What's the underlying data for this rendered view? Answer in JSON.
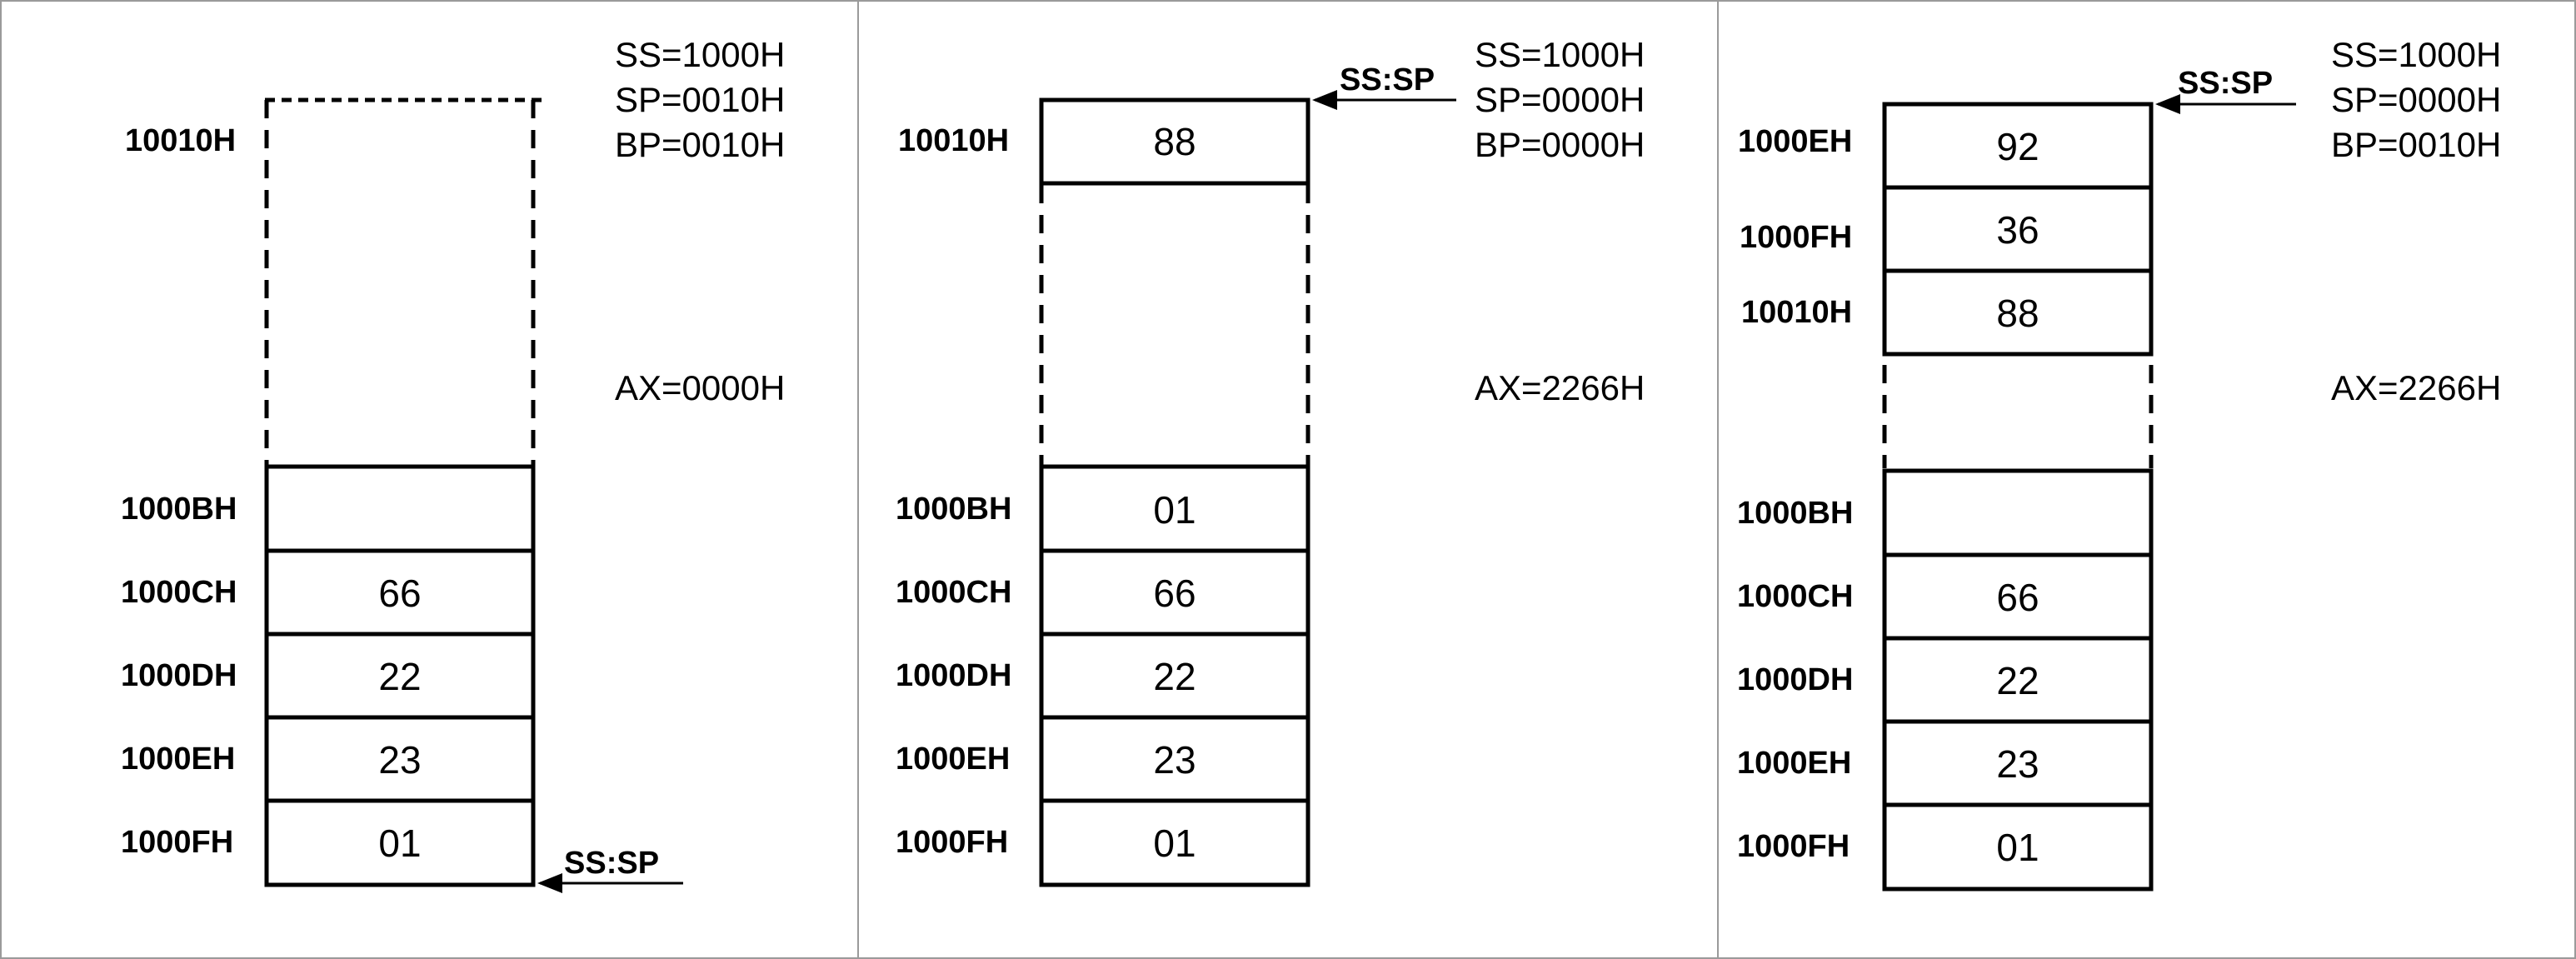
{
  "panels": [
    {
      "top_box": {
        "address": "10010H",
        "value": "",
        "dashed": true
      },
      "top_pointer": "",
      "registers": [
        "SS=1000H",
        "SP=0010H",
        "BP=0010H"
      ],
      "ax": "AX=0000H",
      "bottom_stack": [
        {
          "address": "1000BH",
          "value": ""
        },
        {
          "address": "1000CH",
          "value": "66"
        },
        {
          "address": "1000DH",
          "value": "22"
        },
        {
          "address": "1000EH",
          "value": "23"
        },
        {
          "address": "1000FH",
          "value": "01"
        }
      ],
      "bottom_pointer": "SS:SP"
    },
    {
      "top_box": {
        "address": "10010H",
        "value": "88",
        "dashed": false
      },
      "top_pointer": "SS:SP",
      "registers": [
        "SS=1000H",
        "SP=0000H",
        "BP=0000H"
      ],
      "ax": "AX=2266H",
      "bottom_stack": [
        {
          "address": "1000BH",
          "value": "01"
        },
        {
          "address": "1000CH",
          "value": "66"
        },
        {
          "address": "1000DH",
          "value": "22"
        },
        {
          "address": "1000EH",
          "value": "23"
        },
        {
          "address": "1000FH",
          "value": "01"
        }
      ],
      "bottom_pointer": ""
    },
    {
      "top_stack": [
        {
          "address": "1000EH",
          "value": "92"
        },
        {
          "address": "1000FH",
          "value": "36"
        },
        {
          "address": "10010H",
          "value": "88"
        }
      ],
      "top_pointer": "SS:SP",
      "registers": [
        "SS=1000H",
        "SP=0000H",
        "BP=0010H"
      ],
      "ax": "AX=2266H",
      "bottom_stack": [
        {
          "address": "1000BH",
          "value": ""
        },
        {
          "address": "1000CH",
          "value": "66"
        },
        {
          "address": "1000DH",
          "value": "22"
        },
        {
          "address": "1000EH",
          "value": "23"
        },
        {
          "address": "1000FH",
          "value": "01"
        }
      ],
      "bottom_pointer": ""
    }
  ]
}
